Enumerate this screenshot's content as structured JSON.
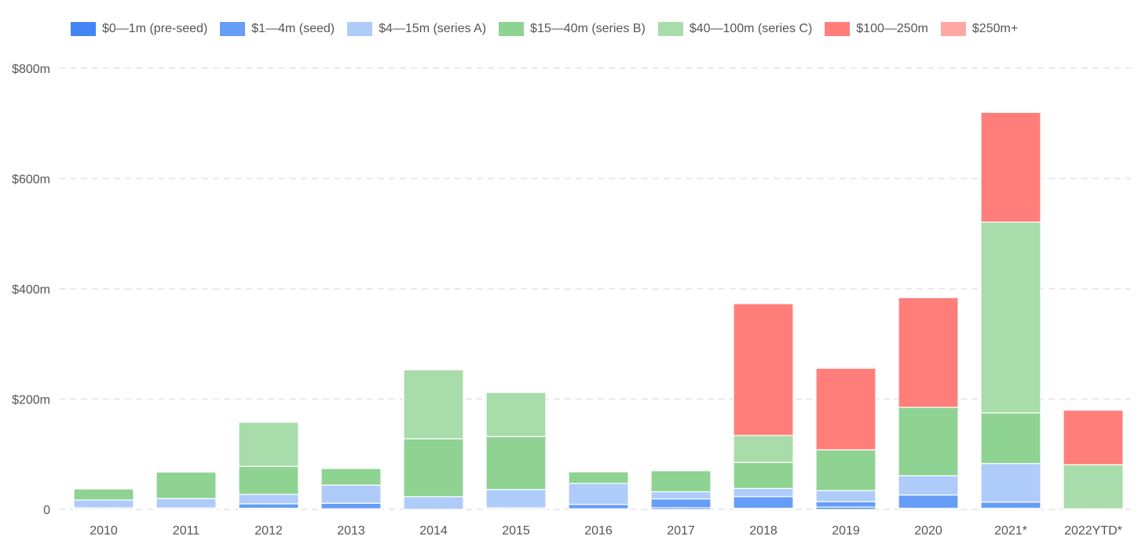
{
  "chart_data": {
    "type": "bar",
    "stacked": true,
    "title": "",
    "xlabel": "",
    "ylabel": "",
    "ylim": [
      0,
      800
    ],
    "yticks": [
      0,
      200,
      400,
      600,
      800
    ],
    "ytick_labels": [
      "0",
      "$200m",
      "$400m",
      "$600m",
      "$800m"
    ],
    "grid": true,
    "legend_position": "top-left",
    "categories": [
      "2010",
      "2011",
      "2012",
      "2013",
      "2014",
      "2015",
      "2016",
      "2017",
      "2018",
      "2019",
      "2020",
      "2021*",
      "2022YTD*"
    ],
    "series": [
      {
        "name": "$0—1m (pre-seed)",
        "color": "#4285f4",
        "values": [
          1,
          0.5,
          2,
          1,
          0,
          1,
          1,
          3,
          2,
          4,
          2,
          2,
          1
        ]
      },
      {
        "name": "$1—4m (seed)",
        "color": "#669df6",
        "values": [
          2,
          2,
          8,
          10,
          0,
          2,
          8,
          16,
          21,
          10,
          24,
          11,
          0
        ]
      },
      {
        "name": "$4—15m (series A)",
        "color": "#aecbfa",
        "values": [
          14,
          17,
          17,
          33,
          23,
          33,
          38,
          13,
          15,
          20,
          35,
          70,
          0
        ]
      },
      {
        "name": "$15—40m (series B)",
        "color": "#8ed391",
        "values": [
          20,
          48,
          51,
          30,
          105,
          96,
          21,
          38,
          47,
          74,
          124,
          92,
          0
        ]
      },
      {
        "name": "$40—100m (series C)",
        "color": "#a8dcaa",
        "values": [
          0,
          0,
          80,
          0,
          125,
          80,
          0,
          0,
          49,
          0,
          0,
          346,
          80
        ]
      },
      {
        "name": "$100—250m",
        "color": "#ff7e7a",
        "values": [
          0,
          0,
          0,
          0,
          0,
          0,
          0,
          0,
          239,
          148,
          199,
          199,
          99
        ]
      },
      {
        "name": "$250m+",
        "color": "#ffa8a3",
        "values": [
          0,
          0,
          0,
          0,
          0,
          0,
          0,
          0,
          0,
          2,
          0,
          0,
          1
        ]
      }
    ]
  }
}
